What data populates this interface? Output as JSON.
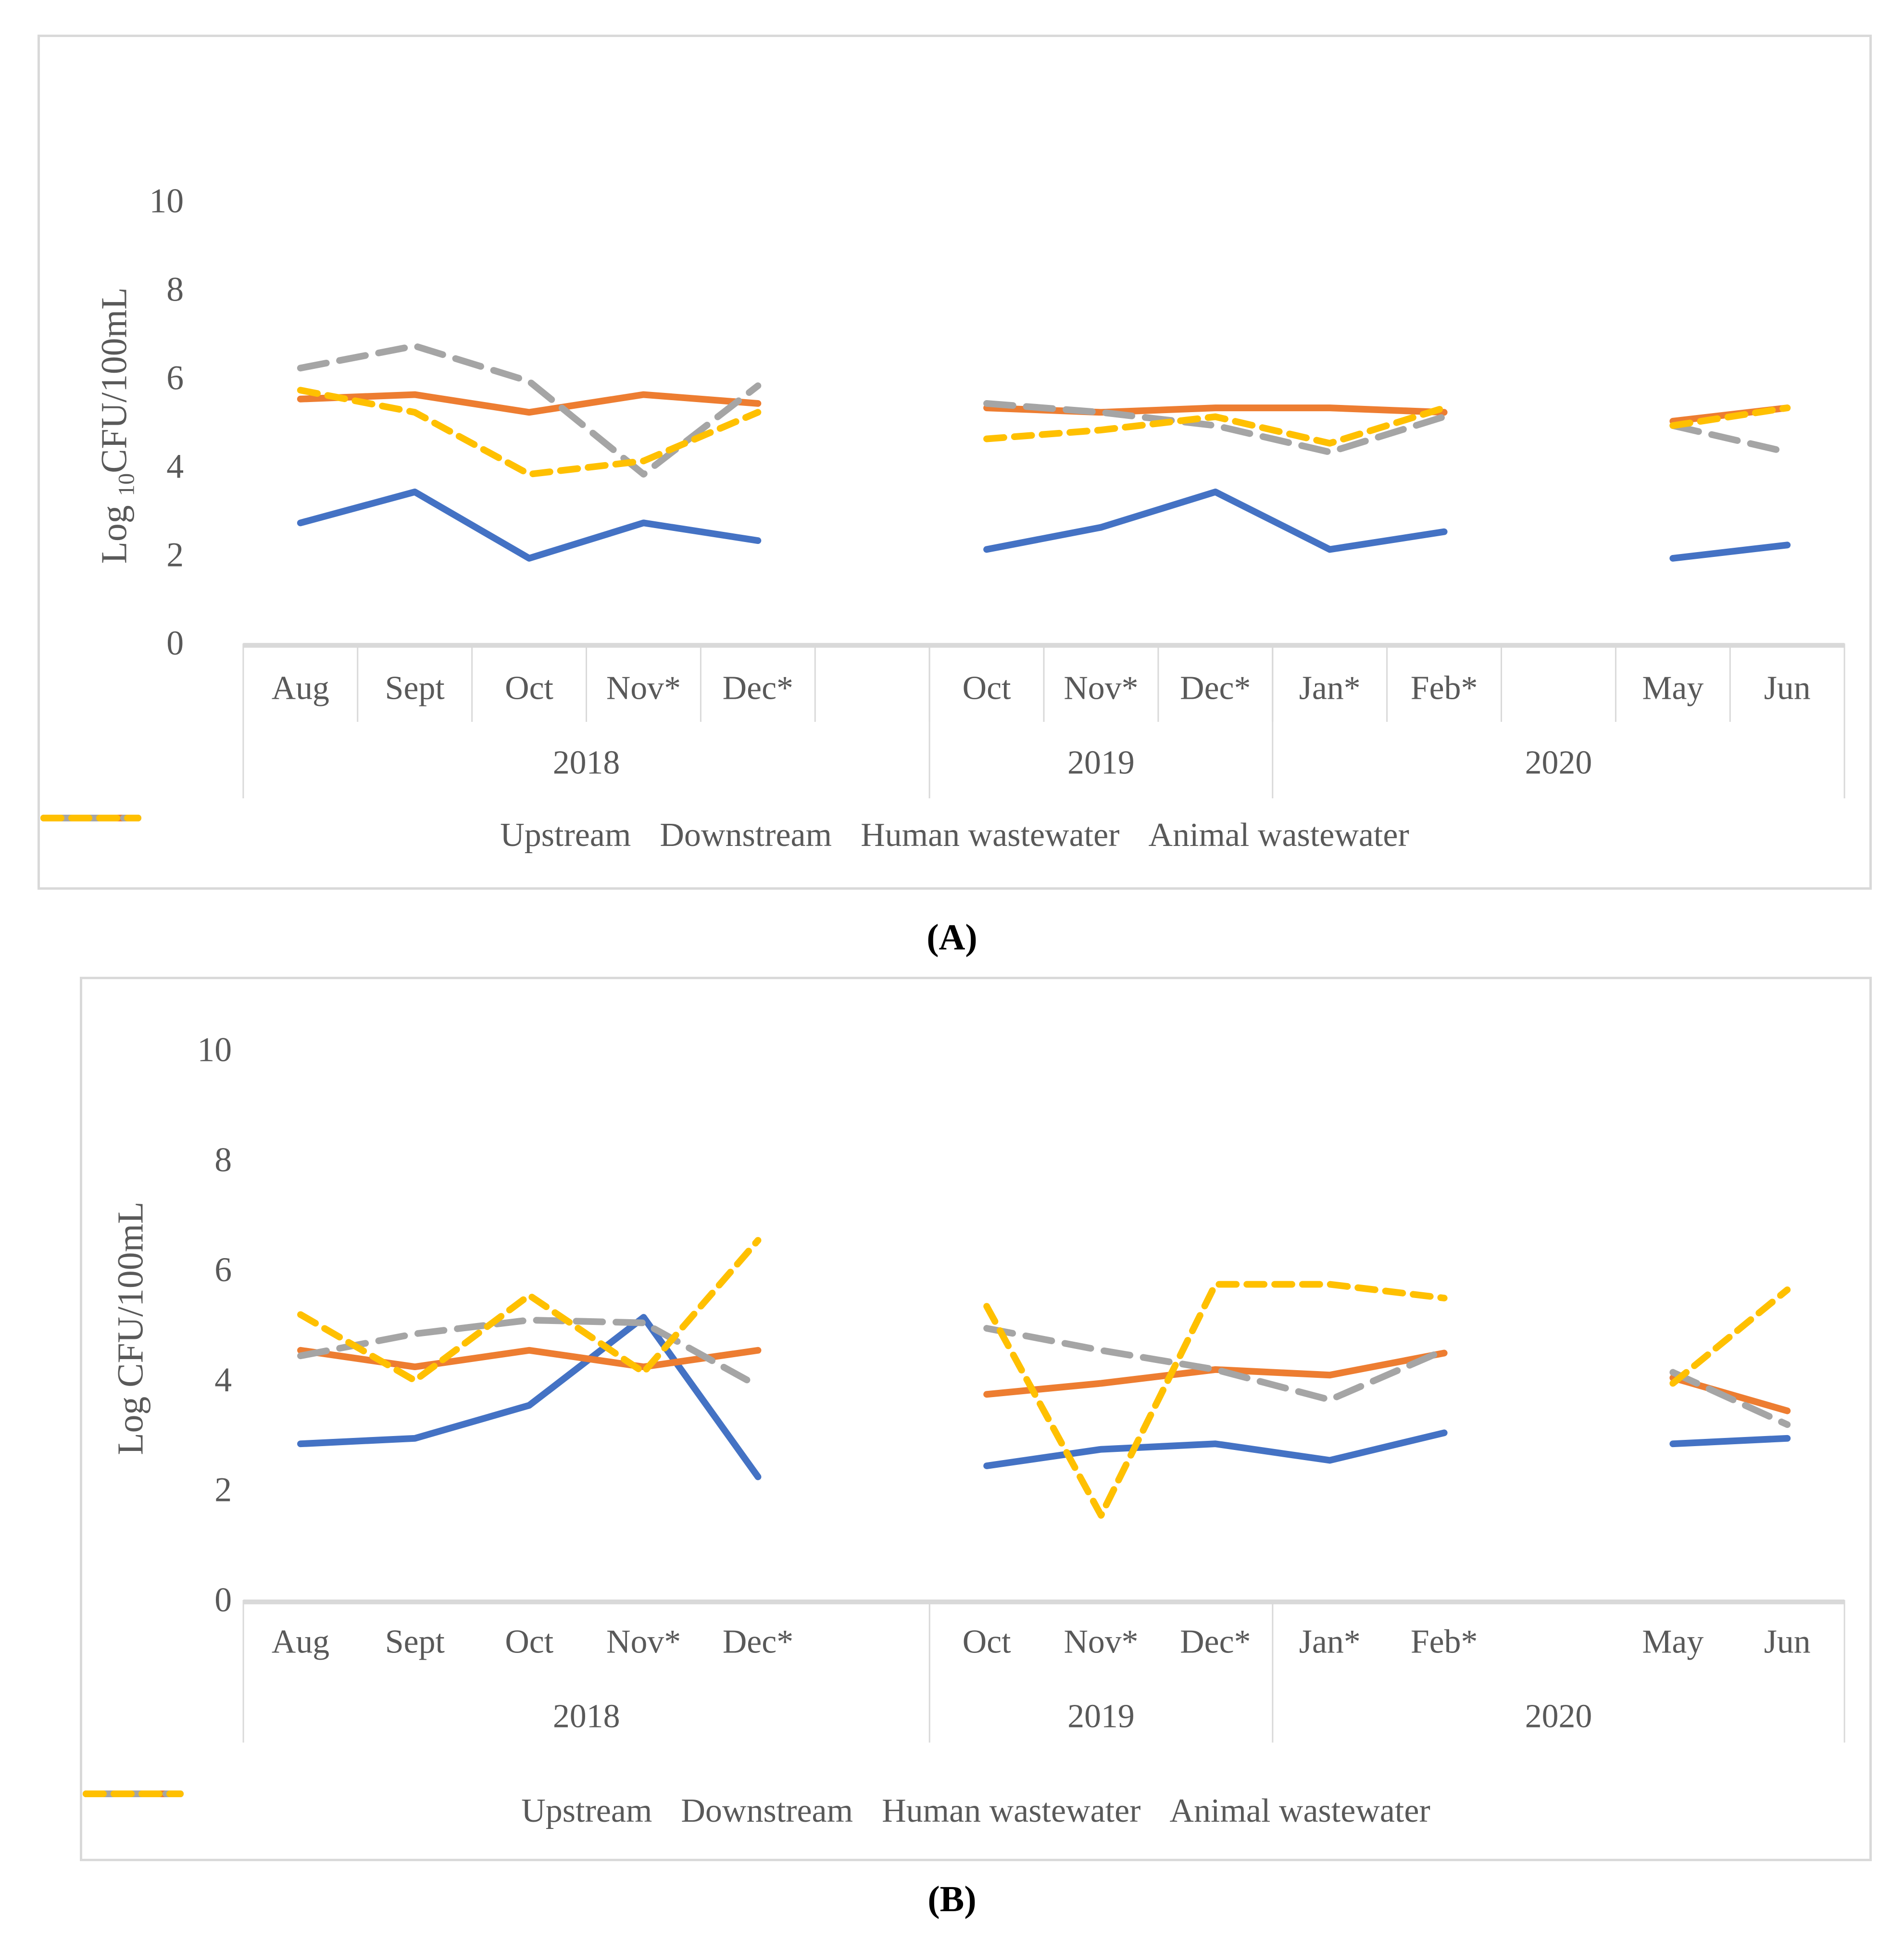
{
  "figure": {
    "panels": [
      {
        "caption": "(A)"
      },
      {
        "caption": "(B)"
      }
    ]
  },
  "theme": {
    "background": "#ffffff",
    "text_color": "#595959",
    "axis_line_color": "#d9d9d9",
    "box_border_color": "#d9d9d9",
    "caption_color": "#000000",
    "series_colors": {
      "upstream": "#4472C4",
      "downstream": "#ED7D31",
      "human_wastewater": "#A5A5A5",
      "animal_wastewater": "#FFC000"
    }
  },
  "chart_data": [
    {
      "id": "A",
      "type": "line",
      "title": "",
      "ylabel": {
        "pre": "Log ",
        "sub": "10",
        "post": "CFU/100mL"
      },
      "ylim": [
        0,
        10
      ],
      "yticks": [
        "0",
        "2",
        "4",
        "6",
        "8",
        "10"
      ],
      "grid": false,
      "legend_position": "bottom",
      "month_dividers": true,
      "categories": [
        "Aug",
        "Sept",
        "Oct",
        "Nov*",
        "Dec*",
        "",
        "Oct",
        "Nov*",
        "Dec*",
        "Jan*",
        "Feb*",
        "",
        "May",
        "Jun"
      ],
      "year_groups": [
        {
          "label": "2018",
          "start": 0,
          "end": 5
        },
        {
          "label": "2019",
          "start": 6,
          "end": 8
        },
        {
          "label": "2020",
          "start": 9,
          "end": 13
        }
      ],
      "series": [
        {
          "name": "Upstream",
          "color": "#4472C4",
          "dash": null,
          "values": [
            2.8,
            3.5,
            2.0,
            2.8,
            2.4,
            null,
            2.2,
            2.7,
            3.5,
            2.2,
            2.6,
            null,
            2.0,
            2.3
          ]
        },
        {
          "name": "Downstream",
          "color": "#ED7D31",
          "dash": null,
          "values": [
            5.6,
            5.7,
            5.3,
            5.7,
            5.5,
            null,
            5.4,
            5.3,
            5.4,
            5.4,
            5.3,
            null,
            5.1,
            5.4
          ]
        },
        {
          "name": "Human wastewater",
          "color": "#A5A5A5",
          "dash": [
            55,
            28
          ],
          "values": [
            6.3,
            6.8,
            6.0,
            3.9,
            5.9,
            null,
            5.5,
            5.3,
            5.0,
            4.4,
            5.2,
            null,
            5.0,
            4.4
          ]
        },
        {
          "name": "Animal wastewater",
          "color": "#FFC000",
          "dash": [
            36,
            22
          ],
          "values": [
            5.8,
            5.3,
            3.9,
            4.2,
            5.3,
            null,
            4.7,
            4.9,
            5.2,
            4.6,
            5.4,
            null,
            5.0,
            5.4
          ]
        }
      ]
    },
    {
      "id": "B",
      "type": "line",
      "title": "",
      "ylabel": {
        "pre": "Log ",
        "sub": "",
        "post": "CFU/100mL"
      },
      "ylim": [
        0,
        10
      ],
      "yticks": [
        "0",
        "2",
        "4",
        "6",
        "8",
        "10"
      ],
      "grid": false,
      "legend_position": "bottom",
      "month_dividers": false,
      "categories": [
        "Aug",
        "Sept",
        "Oct",
        "Nov*",
        "Dec*",
        "",
        "Oct",
        "Nov*",
        "Dec*",
        "Jan*",
        "Feb*",
        "",
        "May",
        "Jun"
      ],
      "year_groups": [
        {
          "label": "2018",
          "start": 0,
          "end": 5
        },
        {
          "label": "2019",
          "start": 6,
          "end": 8
        },
        {
          "label": "2020",
          "start": 9,
          "end": 13
        }
      ],
      "series": [
        {
          "name": "Upstream",
          "color": "#4472C4",
          "dash": null,
          "values": [
            2.9,
            3.0,
            3.6,
            5.2,
            2.3,
            null,
            2.5,
            2.8,
            2.9,
            2.6,
            3.1,
            null,
            2.9,
            3.0
          ]
        },
        {
          "name": "Downstream",
          "color": "#ED7D31",
          "dash": null,
          "values": [
            4.6,
            4.3,
            4.6,
            4.3,
            4.6,
            null,
            3.8,
            4.0,
            4.25,
            4.15,
            4.55,
            null,
            4.1,
            3.5
          ]
        },
        {
          "name": "Human wastewater",
          "color": "#A5A5A5",
          "dash": [
            55,
            28
          ],
          "values": [
            4.5,
            4.9,
            5.15,
            5.1,
            3.95,
            null,
            5.0,
            4.6,
            4.25,
            3.7,
            4.6,
            null,
            4.2,
            3.25
          ]
        },
        {
          "name": "Animal wastewater",
          "color": "#FFC000",
          "dash": [
            36,
            22
          ],
          "values": [
            5.25,
            4.05,
            5.6,
            4.2,
            6.6,
            null,
            5.4,
            1.6,
            5.8,
            5.8,
            5.55,
            null,
            4.0,
            5.7
          ]
        }
      ]
    }
  ]
}
